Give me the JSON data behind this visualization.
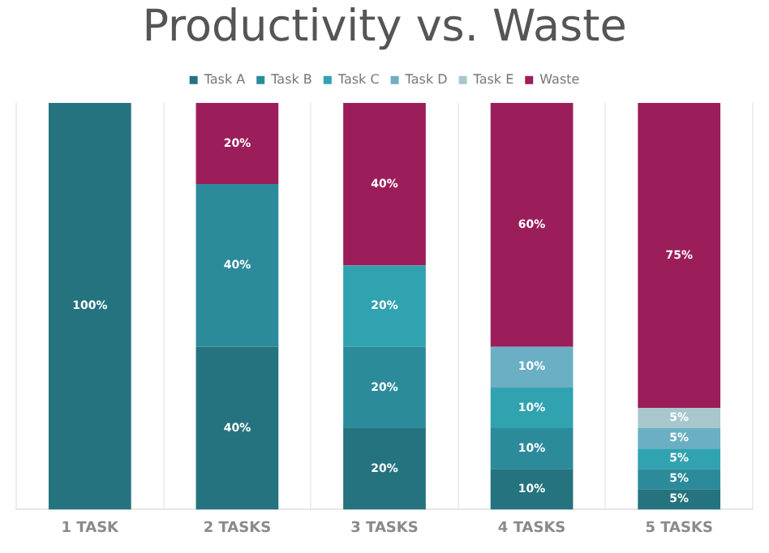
{
  "chart_data": {
    "type": "bar",
    "title": "Productivity vs. Waste",
    "categories": [
      "1 TASK",
      "2 TASKS",
      "3 TASKS",
      "4 TASKS",
      "5 TASKS"
    ],
    "stacked": true,
    "legend": "top",
    "grid": "x",
    "series": [
      {
        "name": "Task A",
        "color": "#24737f",
        "values": [
          100,
          40,
          20,
          10,
          5
        ],
        "value_labels": [
          "100%",
          "40%",
          "20%",
          "10%",
          "5%"
        ]
      },
      {
        "name": "Task B",
        "color": "#2b8b9a",
        "values": [
          null,
          40,
          20,
          10,
          5
        ],
        "value_labels": [
          null,
          "40%",
          "20%",
          "10%",
          "5%"
        ]
      },
      {
        "name": "Task C",
        "color": "#30a2b0",
        "values": [
          null,
          null,
          20,
          10,
          5
        ],
        "value_labels": [
          null,
          null,
          "20%",
          "10%",
          "5%"
        ]
      },
      {
        "name": "Task D",
        "color": "#6aafc3",
        "values": [
          null,
          null,
          null,
          10,
          5
        ],
        "value_labels": [
          null,
          null,
          null,
          "10%",
          "5%"
        ]
      },
      {
        "name": "Task E",
        "color": "#a8c7cd",
        "values": [
          null,
          null,
          null,
          null,
          5
        ],
        "value_labels": [
          null,
          null,
          null,
          null,
          "5%"
        ]
      },
      {
        "name": "Waste",
        "color": "#9b1d5a",
        "values": [
          null,
          20,
          40,
          60,
          75
        ],
        "value_labels": [
          null,
          "20%",
          "40%",
          "60%",
          "75%"
        ]
      }
    ]
  }
}
